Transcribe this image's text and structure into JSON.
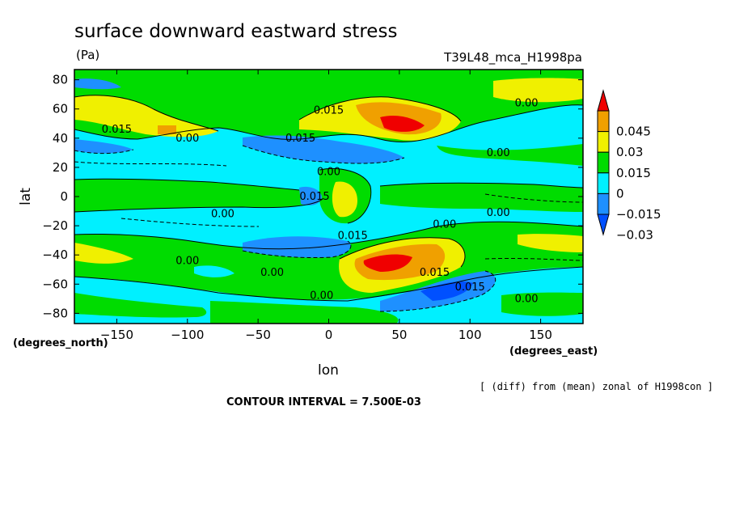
{
  "chart_data": {
    "type": "contour",
    "title": "surface downward eastward stress",
    "units": "(Pa)",
    "run_label": "T39L48_mca_H1998pa",
    "xlabel": "lon",
    "ylabel": "lat",
    "x_units": "(degrees_east)",
    "y_units": "(degrees_north)",
    "xlim": [
      -180,
      180
    ],
    "ylim": [
      -87,
      87
    ],
    "x_ticks": [
      -150,
      -100,
      -50,
      0,
      50,
      100,
      150
    ],
    "y_ticks": [
      80,
      60,
      40,
      20,
      0,
      -20,
      -40,
      -60,
      -80
    ],
    "contour_interval": "CONTOUR INTERVAL = 7.500E-03",
    "subtitle_note": "[ (diff) from (mean) zonal of H1998con ]",
    "colorbar": {
      "levels": [
        "0.045",
        "0.03",
        "0.015",
        "0",
        "-0.015",
        "-0.03"
      ],
      "colors": [
        "#0050ff",
        "#1e90ff",
        "#00f0ff",
        "#00dc00",
        "#f0f000",
        "#f0a000",
        "#f00000"
      ]
    },
    "contour_labels": [
      {
        "text": "0.015",
        "lon": 0,
        "lat": 59
      },
      {
        "text": "0.00",
        "lon": 140,
        "lat": 64
      },
      {
        "text": "0.015",
        "lon": -150,
        "lat": 46
      },
      {
        "text": "0.00",
        "lon": -100,
        "lat": 40
      },
      {
        "text": "0.015",
        "lon": -20,
        "lat": 40
      },
      {
        "text": "0.00",
        "lon": 120,
        "lat": 30
      },
      {
        "text": "0.00",
        "lon": 0,
        "lat": 17
      },
      {
        "text": "0.015",
        "lon": -10,
        "lat": 0
      },
      {
        "text": "0.00",
        "lon": -75,
        "lat": -12
      },
      {
        "text": "0.00",
        "lon": 120,
        "lat": -11
      },
      {
        "text": "0.00",
        "lon": 82,
        "lat": -19
      },
      {
        "text": "0.015",
        "lon": 17,
        "lat": -27
      },
      {
        "text": "0.00",
        "lon": -100,
        "lat": -44
      },
      {
        "text": "0.00",
        "lon": -40,
        "lat": -52
      },
      {
        "text": "0.015",
        "lon": 75,
        "lat": -52
      },
      {
        "text": "0.015",
        "lon": 100,
        "lat": -62
      },
      {
        "text": "0.00",
        "lon": -5,
        "lat": -68
      },
      {
        "text": "0.00",
        "lon": 140,
        "lat": -70
      }
    ]
  }
}
